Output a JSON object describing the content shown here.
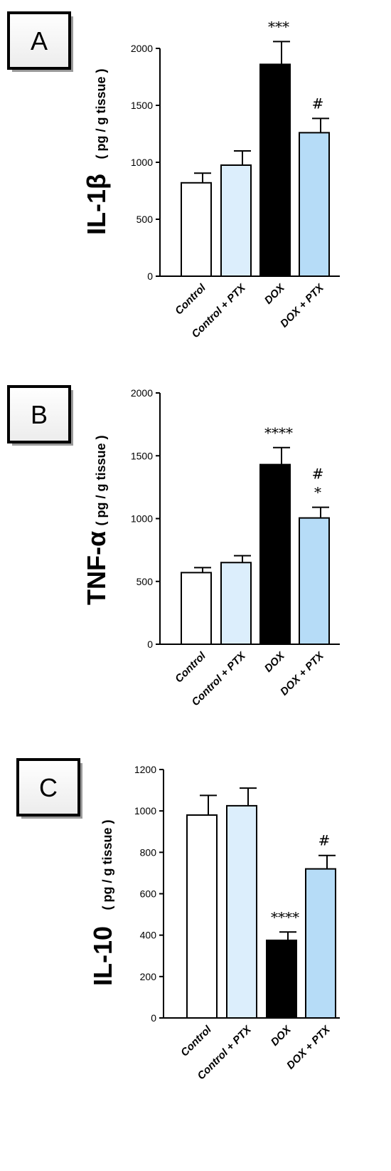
{
  "chart_data": [
    {
      "panel": "A",
      "type": "bar",
      "ylabel_main": "IL-1β",
      "ylabel_unit": "( pg / g tissue )",
      "ylim": [
        0,
        2200
      ],
      "yticks": [
        0,
        500,
        1000,
        1500,
        2000
      ],
      "categories": [
        "Control",
        "Control + PTX",
        "DOX",
        "DOX + PTX"
      ],
      "values": [
        820,
        975,
        1860,
        1260
      ],
      "errors": [
        85,
        125,
        200,
        125
      ],
      "colors": [
        "#ffffff",
        "#dceefc",
        "#000000",
        "#b6dcf7"
      ],
      "significance": [
        "",
        "",
        "***",
        "#"
      ]
    },
    {
      "panel": "B",
      "type": "bar",
      "ylabel_main": "TNF-α",
      "ylabel_unit": "( pg / g tissue )",
      "ylim": [
        0,
        2000
      ],
      "yticks": [
        0,
        500,
        1000,
        1500,
        2000
      ],
      "categories": [
        "Control",
        "Control + PTX",
        "DOX",
        "DOX + PTX"
      ],
      "values": [
        570,
        650,
        1430,
        1005
      ],
      "errors": [
        40,
        55,
        135,
        85
      ],
      "colors": [
        "#ffffff",
        "#dceefc",
        "#000000",
        "#b6dcf7"
      ],
      "significance": [
        "",
        "",
        "****",
        "#\n*"
      ]
    },
    {
      "panel": "C",
      "type": "bar",
      "ylabel_main": "IL-10",
      "ylabel_unit": "( pg / g tissue )",
      "ylim": [
        0,
        1200
      ],
      "yticks": [
        0,
        200,
        400,
        600,
        800,
        1000,
        1200
      ],
      "categories": [
        "Control",
        "Control + PTX",
        "DOX",
        "DOX + PTX"
      ],
      "values": [
        980,
        1025,
        375,
        720
      ],
      "errors": [
        95,
        85,
        40,
        65
      ],
      "colors": [
        "#ffffff",
        "#dceefc",
        "#000000",
        "#b6dcf7"
      ],
      "significance": [
        "",
        "",
        "****",
        "#"
      ]
    }
  ]
}
